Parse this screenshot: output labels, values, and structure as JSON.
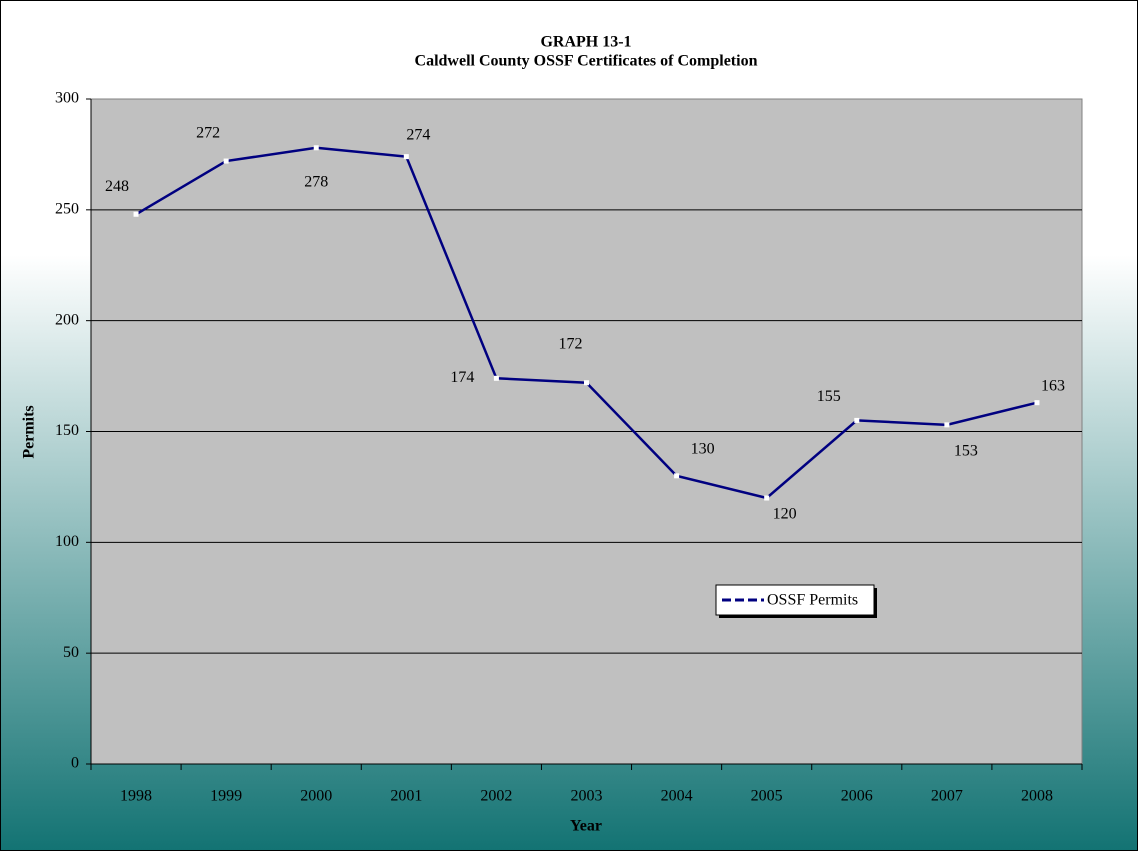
{
  "chart_data": {
    "type": "line",
    "title": "GRAPH 13-1",
    "subtitle": "Caldwell County OSSF Certificates of Completion",
    "x_label": "Year",
    "y_label": "Permits",
    "categories": [
      "1998",
      "1999",
      "2000",
      "2001",
      "2002",
      "2003",
      "2004",
      "2005",
      "2006",
      "2007",
      "2008"
    ],
    "series": [
      {
        "name": "OSSF Permits",
        "color": "#000080",
        "marker_color": "#ffffff",
        "values": [
          248,
          272,
          278,
          274,
          174,
          172,
          130,
          120,
          155,
          153,
          163
        ]
      }
    ],
    "ylim": [
      0,
      300
    ],
    "yticks": [
      0,
      50,
      100,
      150,
      200,
      250,
      300
    ],
    "grid": true
  }
}
